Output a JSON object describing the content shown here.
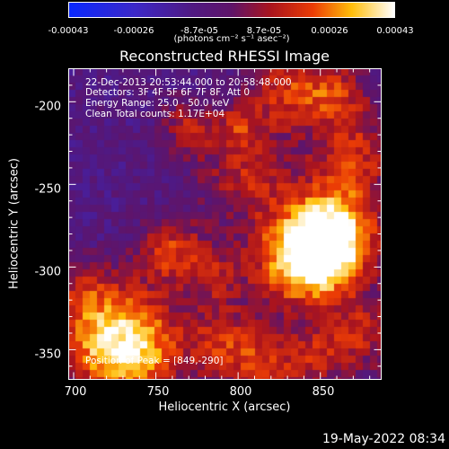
{
  "colorbar": {
    "ticks": [
      "-0.00043",
      "-0.00026",
      "-8.7e-05",
      "8.7e-05",
      "0.00026",
      "0.00043"
    ],
    "units": "(photons cm⁻² s⁻¹ asec⁻²)"
  },
  "chart_data": {
    "type": "heatmap",
    "title": "Reconstructed RHESSI Image",
    "xlabel": "Heliocentric X (arcsec)",
    "ylabel": "Heliocentric Y (arcsec)",
    "xlim": [
      697,
      887
    ],
    "ylim": [
      -368,
      -180
    ],
    "x_ticks": [
      700,
      750,
      800,
      850
    ],
    "y_ticks": [
      -200,
      -250,
      -300,
      -350
    ],
    "clim": [
      -0.00043,
      0.00043
    ],
    "annotations": [
      "22-Dec-2013 20:53:44.000 to 20:58:48.000",
      "Detectors: 3F 4F 5F 6F 7F 8F, Att 0",
      "Energy Range: 25.0 - 50.0 keV",
      "Clean     Total counts: 1.17E+04"
    ],
    "peak_label": "Position of Peak = [849,-290]",
    "peak": [
      849,
      -290
    ]
  },
  "footer": "19-May-2022 08:34"
}
